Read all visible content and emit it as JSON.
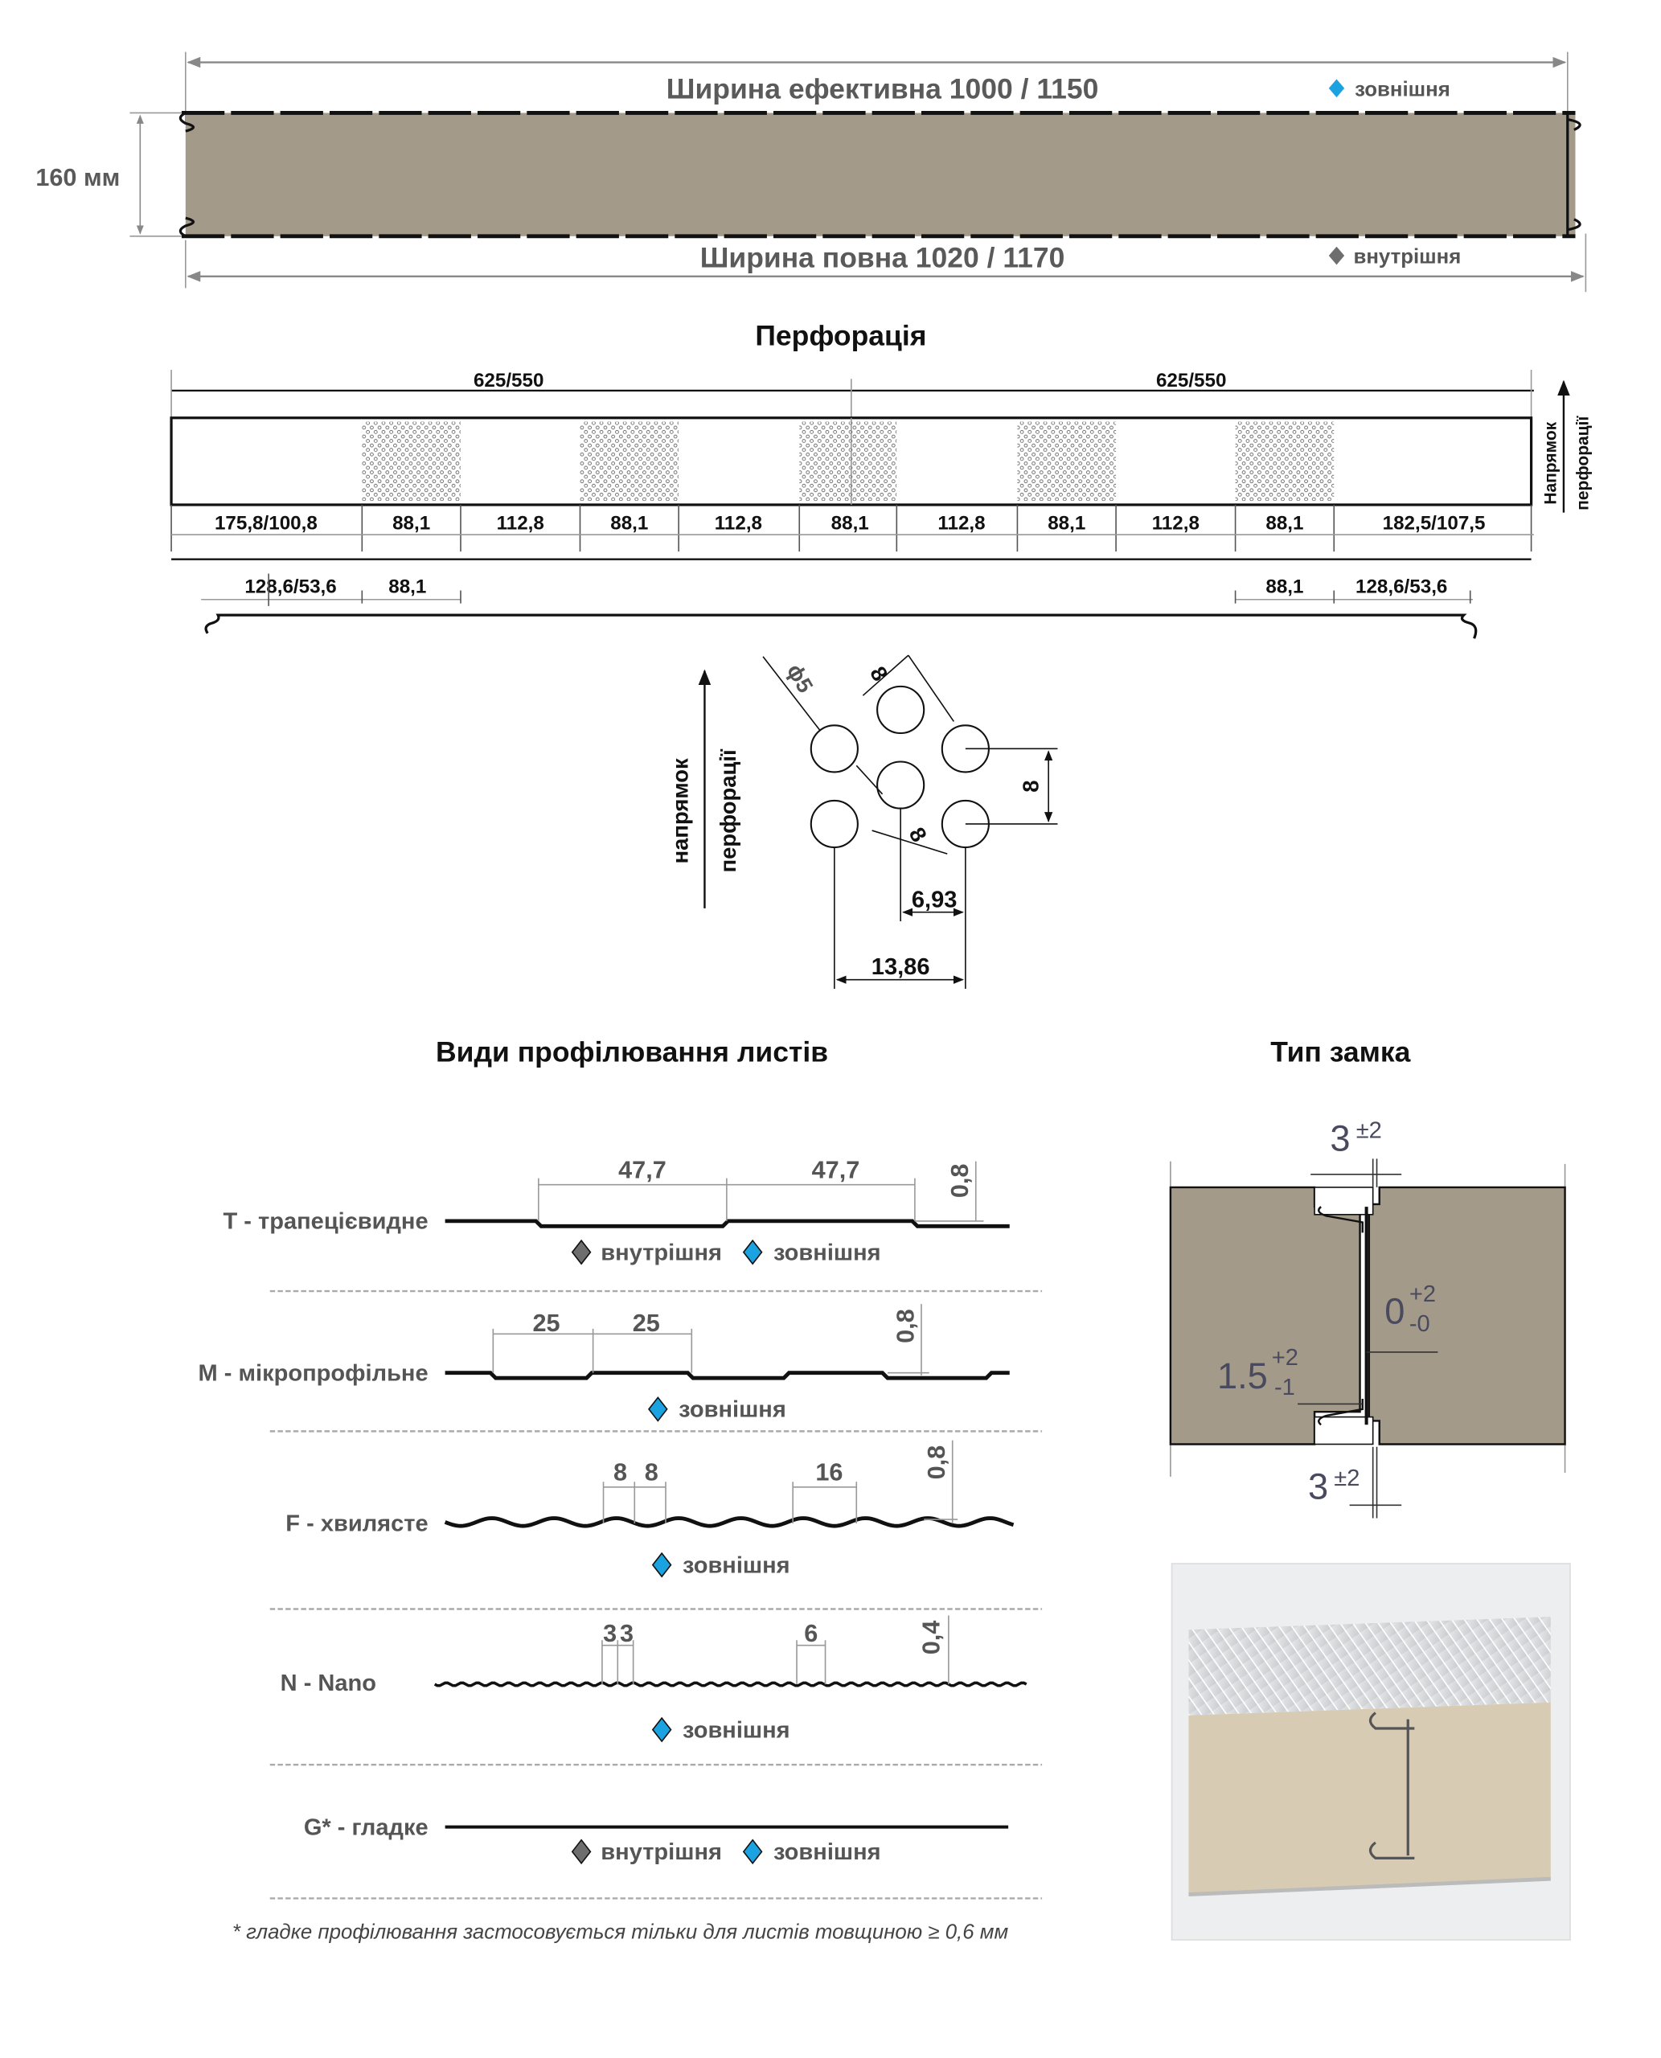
{
  "colors": {
    "panel_core": "#a39a8a",
    "outer_marker": "#1aa3e0",
    "inner_marker": "#6e6e6e",
    "text_gray": "#5a5a5a"
  },
  "top": {
    "effective_width": "Ширина ефективна 1000 / 1150",
    "full_width": "Ширина повна 1020 / 1170",
    "thickness": "160 мм",
    "legend_outer": "зовнішня",
    "legend_inner": "внутрішня"
  },
  "perforation": {
    "title": "Перфорація",
    "direction_line1": "Напрямок",
    "direction_line2": "перфорації",
    "top_dims": [
      "625/550",
      "625/550"
    ],
    "segments": [
      "175,8/100,8",
      "88,1",
      "112,8",
      "88,1",
      "112,8",
      "88,1",
      "112,8",
      "88,1",
      "112,8",
      "88,1",
      "182,5/107,5"
    ],
    "bottom_dims": [
      "128,6/53,6",
      "88,1",
      "88,1",
      "128,6/53,6"
    ]
  },
  "hole_pattern": {
    "direction_line1": "напрямок",
    "direction_line2": "перфорації",
    "diameter": "ϕ5",
    "pitch": "8",
    "row_spacing": "8",
    "diagonal": "8",
    "half_step": "6,93",
    "full_step": "13,86"
  },
  "profiles": {
    "title": "Види профілювання листів",
    "items": [
      {
        "label": "T - трапецієвидне",
        "dims": [
          "47,7",
          "47,7"
        ],
        "thickness": "0,8",
        "legend": [
          "внутрішня",
          "зовнішня"
        ]
      },
      {
        "label": "M - мікропрофільне",
        "dims": [
          "25",
          "25"
        ],
        "thickness": "0,8",
        "legend": [
          "зовнішня"
        ]
      },
      {
        "label": "F - хвилясте",
        "dims": [
          "8",
          "8",
          "16"
        ],
        "thickness": "0,8",
        "legend": [
          "зовнішня"
        ]
      },
      {
        "label": "N - Nano",
        "dims": [
          "3",
          "3",
          "6"
        ],
        "thickness": "0,4",
        "legend": [
          "зовнішня"
        ]
      },
      {
        "label": "G* - гладке",
        "dims": [],
        "thickness": "",
        "legend": [
          "внутрішня",
          "зовнішня"
        ]
      }
    ],
    "footnote": "* гладке профілювання застосовується тільки для листів товщиною ≥ 0,6 мм"
  },
  "lock": {
    "title": "Тип замка",
    "gap_top": "3",
    "gap_top_tol": "±2",
    "joint": "0",
    "joint_tol_plus": "+2",
    "joint_tol_minus": "-0",
    "offset": "1.5",
    "offset_tol_plus": "+2",
    "offset_tol_minus": "-1",
    "gap_bottom": "3",
    "gap_bottom_tol": "±2"
  }
}
